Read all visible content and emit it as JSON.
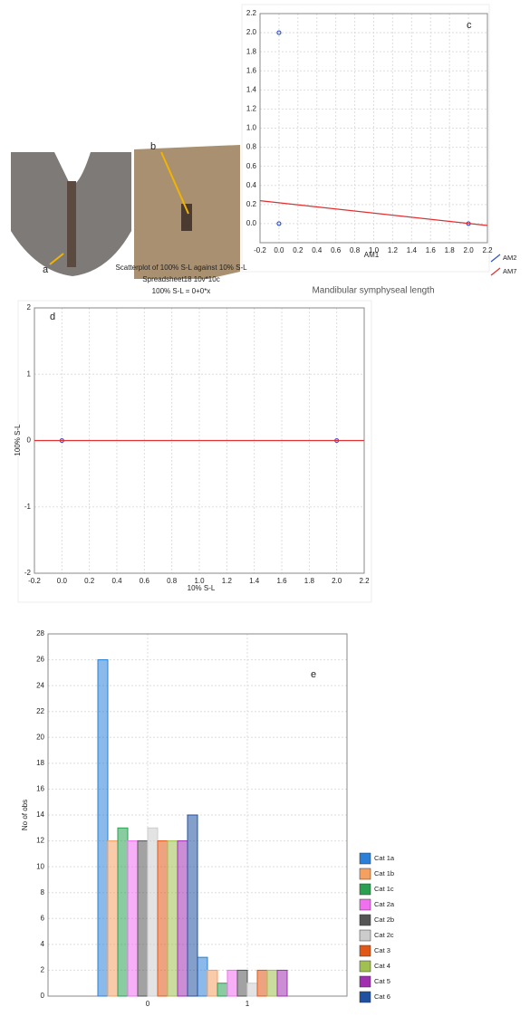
{
  "photos": {
    "labels": [
      "a",
      "b"
    ]
  },
  "chart_data": [
    {
      "type": "scatter",
      "panel": "c",
      "subtitle": "Mandibular symphyseal length",
      "x_label": "AM1",
      "xlim": [
        -0.2,
        2.2
      ],
      "ylim": [
        -0.2,
        2.2
      ],
      "xticks": [
        -0.2,
        {
          "value": 0,
          "label": "0.0"
        },
        0.2,
        0.4,
        0.6,
        0.8,
        {
          "value": 1,
          "label": "1.0"
        },
        1.2,
        1.4,
        1.6,
        1.8,
        {
          "value": 2,
          "label": "2.0"
        },
        2.2
      ],
      "yticks": [
        {
          "value": 0,
          "label": "0.0"
        },
        0.2,
        0.4,
        0.6,
        0.8,
        {
          "value": 1,
          "label": "1.0"
        },
        1.2,
        1.4,
        1.6,
        1.8,
        {
          "value": 2,
          "label": "2.0"
        },
        2.2
      ],
      "grid": true,
      "series": [
        {
          "name": "AM2",
          "color": "#3050c8",
          "mode": "markers",
          "x": [
            0,
            0,
            2
          ],
          "y": [
            2,
            0,
            0
          ]
        },
        {
          "name": "AM7",
          "color": "#e03030",
          "mode": "line",
          "x": [
            -0.2,
            2.2
          ],
          "y": [
            0.24,
            -0.02
          ]
        }
      ]
    },
    {
      "type": "scatter",
      "panel": "d",
      "title": "Scatterplot of 100% S-L against 10% S-L",
      "subtitle": "Spreadsheet18 10v*10c",
      "equation": "100% S-L = 0+0*x",
      "x_label": "10% S-L",
      "y_label": "100% S-L",
      "xlim": [
        -0.2,
        2.2
      ],
      "ylim": [
        -2,
        2
      ],
      "xticks": [
        -0.2,
        {
          "value": 0,
          "label": "0.0"
        },
        0.2,
        0.4,
        0.6,
        0.8,
        {
          "value": 1,
          "label": "1.0"
        },
        1.2,
        1.4,
        1.6,
        1.8,
        {
          "value": 2,
          "label": "2.0"
        },
        2.2
      ],
      "yticks": [
        -2,
        -1,
        0,
        1,
        2
      ],
      "grid": true,
      "series": [
        {
          "color": "#5050c0",
          "mode": "markers",
          "x": [
            0,
            2
          ],
          "y": [
            0,
            0
          ]
        },
        {
          "color": "#e03030",
          "mode": "line",
          "x": [
            -0.2,
            2.2
          ],
          "y": [
            0,
            0
          ]
        }
      ]
    },
    {
      "type": "histogram",
      "panel": "e",
      "y_label": "No of obs",
      "xlim": [
        -1,
        2
      ],
      "ylim": [
        0,
        28
      ],
      "xticks": [
        0,
        1
      ],
      "yticks": [
        0,
        2,
        4,
        6,
        8,
        10,
        12,
        14,
        16,
        18,
        20,
        22,
        24,
        26,
        28
      ],
      "grid": true,
      "bins": [
        -0.5,
        0.5,
        1.5
      ],
      "series": [
        {
          "name": "Cat 1a",
          "color": "#2a80d8",
          "values": [
            26,
            3
          ]
        },
        {
          "name": "Cat 1b",
          "color": "#f4a060",
          "values": [
            12,
            2
          ]
        },
        {
          "name": "Cat 1c",
          "color": "#2aa050",
          "values": [
            13,
            1
          ]
        },
        {
          "name": "Cat 2a",
          "color": "#f070f0",
          "values": [
            12,
            2
          ]
        },
        {
          "name": "Cat 2b",
          "color": "#555555",
          "values": [
            12,
            2
          ]
        },
        {
          "name": "Cat 2c",
          "color": "#cccccc",
          "values": [
            13,
            1
          ]
        },
        {
          "name": "Cat 3",
          "color": "#e05818",
          "values": [
            12,
            2
          ]
        },
        {
          "name": "Cat 4",
          "color": "#a0c050",
          "values": [
            12,
            2
          ]
        },
        {
          "name": "Cat 5",
          "color": "#a030b0",
          "values": [
            12,
            2
          ]
        },
        {
          "name": "Cat 6",
          "color": "#2050a0",
          "values": [
            14,
            0
          ]
        }
      ]
    }
  ]
}
